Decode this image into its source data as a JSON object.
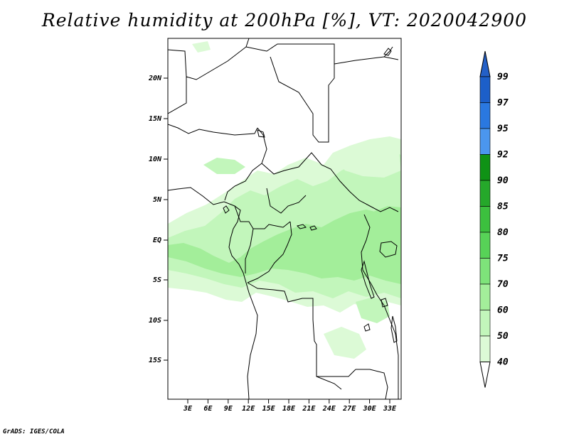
{
  "title": "Relative humidity at 200hPa [%], VT: 2020042900",
  "credit": "GrADS: IGES/COLA",
  "map": {
    "region": "Central Africa",
    "lat_labels": [
      "20N",
      "15N",
      "10N",
      "5N",
      "EQ",
      "5S",
      "10S",
      "15S"
    ],
    "lon_labels": [
      "3E",
      "6E",
      "9E",
      "12E",
      "15E",
      "18E",
      "21E",
      "24E",
      "27E",
      "30E",
      "33E"
    ]
  },
  "colorbar": {
    "levels": [
      "99",
      "97",
      "95",
      "92",
      "90",
      "85",
      "80",
      "75",
      "70",
      "60",
      "50",
      "40"
    ],
    "colors": [
      "#1c5fc9",
      "#2a78e0",
      "#4b96ee",
      "#0f9215",
      "#25a82a",
      "#3cc03e",
      "#57d257",
      "#7ee37a",
      "#a3ee9a",
      "#c2f6bb",
      "#dcfad6",
      "#f0fdee"
    ],
    "low_color": "#ffffff",
    "high_color": "#2460c7"
  }
}
